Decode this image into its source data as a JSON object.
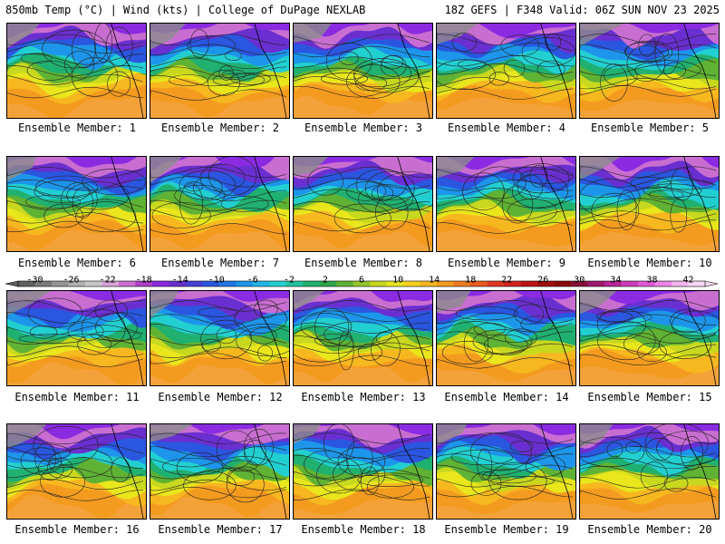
{
  "header": {
    "title": "850mb Temp (°C) | Wind (kts) | College of DuPage NEXLAB",
    "run_info": "18Z GEFS | F348 Valid: 06Z SUN NOV 23 2025"
  },
  "caption_prefix": "Ensemble Member: ",
  "members": [
    {
      "label": "Ensemble Member: 1"
    },
    {
      "label": "Ensemble Member: 2"
    },
    {
      "label": "Ensemble Member: 3"
    },
    {
      "label": "Ensemble Member: 4"
    },
    {
      "label": "Ensemble Member: 5"
    },
    {
      "label": "Ensemble Member: 6"
    },
    {
      "label": "Ensemble Member: 7"
    },
    {
      "label": "Ensemble Member: 8"
    },
    {
      "label": "Ensemble Member: 9"
    },
    {
      "label": "Ensemble Member: 10"
    },
    {
      "label": "Ensemble Member: 11"
    },
    {
      "label": "Ensemble Member: 12"
    },
    {
      "label": "Ensemble Member: 13"
    },
    {
      "label": "Ensemble Member: 14"
    },
    {
      "label": "Ensemble Member: 15"
    },
    {
      "label": "Ensemble Member: 16"
    },
    {
      "label": "Ensemble Member: 17"
    },
    {
      "label": "Ensemble Member: 18"
    },
    {
      "label": "Ensemble Member: 19"
    },
    {
      "label": "Ensemble Member: 20"
    }
  ],
  "colorbar": {
    "tick_labels": [
      "-30",
      "-26",
      "-22",
      "-18",
      "-14",
      "-10",
      "-6",
      "-2",
      "2",
      "6",
      "10",
      "14",
      "18",
      "22",
      "26",
      "30",
      "34",
      "38",
      "42"
    ],
    "colors": [
      "#606060",
      "#7a7a7a",
      "#959595",
      "#b0b0b0",
      "#c8c8c8",
      "#d9a3d9",
      "#c96ed1",
      "#b040c8",
      "#8a2be2",
      "#6a2fd0",
      "#4640d8",
      "#2a56e0",
      "#1f76e8",
      "#1d95ea",
      "#1fb6e6",
      "#22cfd0",
      "#20c3a0",
      "#20b070",
      "#2fa64a",
      "#5fb233",
      "#95c52a",
      "#c8d81f",
      "#e9e61c",
      "#f6d21e",
      "#f6b71f",
      "#f39b1f",
      "#ef7c1f",
      "#ea5a1f",
      "#e2381f",
      "#d3211f",
      "#bd1515",
      "#a50d0d",
      "#8c0808",
      "#8a0f3a",
      "#a0186d",
      "#b82596",
      "#cd3cb9",
      "#e15ad5",
      "#ee84e6",
      "#f5b2f0",
      "#f9d7f7"
    ]
  }
}
